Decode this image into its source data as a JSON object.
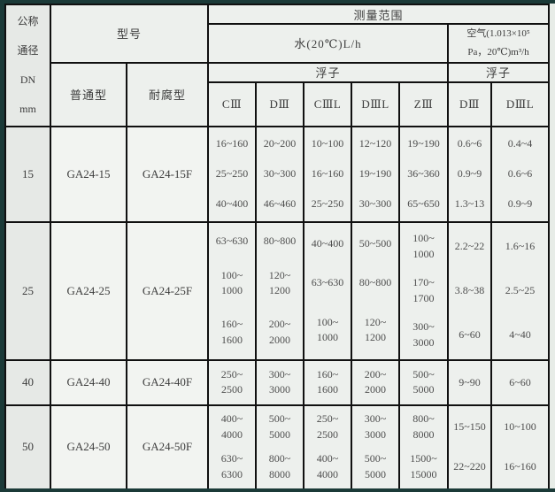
{
  "header": {
    "dn_label": "公称\n通径\nDN\nmm",
    "model_label": "型号",
    "measure_range_label": "测量范围",
    "water_label": "水(20℃)L/h",
    "air_label": "空气(1.013×10⁵\nPa，20℃)m³/h",
    "normal_type_label": "普通型",
    "corrosion_type_label": "耐腐型",
    "float_label_water": "浮子",
    "float_label_air": "浮子",
    "float_columns_water": [
      "CⅢ",
      "DⅢ",
      "CⅢL",
      "DⅢL",
      "ZⅢ"
    ],
    "float_columns_air": [
      "DⅢ",
      "DⅢL"
    ]
  },
  "table": {
    "rows": [
      {
        "dn": "15",
        "normal_model": "GA24-15",
        "corrosion_model": "GA24-15F",
        "ranges": [
          [
            "16~160",
            "25~250",
            "40~400"
          ],
          [
            "20~200",
            "30~300",
            "46~460"
          ],
          [
            "10~100",
            "16~160",
            "25~250"
          ],
          [
            "12~120",
            "19~190",
            "30~300"
          ],
          [
            "19~190",
            "36~360",
            "65~650"
          ],
          [
            "0.6~6",
            "0.9~9",
            "1.3~13"
          ],
          [
            "0.4~4",
            "0.6~6",
            "0.9~9"
          ]
        ]
      },
      {
        "dn": "25",
        "normal_model": "GA24-25",
        "corrosion_model": "GA24-25F",
        "ranges": [
          [
            "63~630",
            "100~\n1000",
            "160~\n1600"
          ],
          [
            "80~800",
            "120~\n1200",
            "200~\n2000"
          ],
          [
            "40~400",
            "63~630",
            "100~\n1000"
          ],
          [
            "50~500",
            "80~800",
            "120~\n1200"
          ],
          [
            "100~\n1000",
            "170~\n1700",
            "300~\n3000"
          ],
          [
            "2.2~22",
            "3.8~38",
            "6~60"
          ],
          [
            "1.6~16",
            "2.5~25",
            "4~40"
          ]
        ]
      },
      {
        "dn": "40",
        "normal_model": "GA24-40",
        "corrosion_model": "GA24-40F",
        "ranges": [
          [
            "250~\n2500"
          ],
          [
            "300~\n3000"
          ],
          [
            "160~\n1600"
          ],
          [
            "200~\n2000"
          ],
          [
            "500~\n5000"
          ],
          [
            "9~90"
          ],
          [
            "6~60"
          ]
        ]
      },
      {
        "dn": "50",
        "normal_model": "GA24-50",
        "corrosion_model": "GA24-50F",
        "ranges": [
          [
            "400~\n4000",
            "630~\n6300"
          ],
          [
            "500~\n5000",
            "800~\n8000"
          ],
          [
            "250~\n2500",
            "400~\n4000"
          ],
          [
            "300~\n3000",
            "500~\n5000"
          ],
          [
            "800~\n8000",
            "1500~\n15000"
          ],
          [
            "15~150",
            "22~220"
          ],
          [
            "10~100",
            "16~160"
          ]
        ]
      }
    ]
  }
}
